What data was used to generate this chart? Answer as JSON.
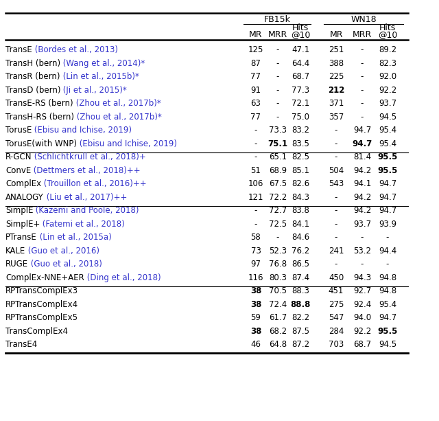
{
  "fb15k_header": "FB15k",
  "wn18_header": "WN18",
  "groups": [
    {
      "rows": [
        {
          "model": "TransE",
          "cite": " (Bordes et al., 2013)",
          "vals": [
            "125",
            "-",
            "47.1",
            "251",
            "-",
            "89.2"
          ],
          "bold": []
        },
        {
          "model": "TransH (bern)",
          "cite": " (Wang et al., 2014)*",
          "vals": [
            "87",
            "-",
            "64.4",
            "388",
            "-",
            "82.3"
          ],
          "bold": []
        },
        {
          "model": "TransR (bern)",
          "cite": " (Lin et al., 2015b)*",
          "vals": [
            "77",
            "-",
            "68.7",
            "225",
            "-",
            "92.0"
          ],
          "bold": []
        },
        {
          "model": "TransD (bern)",
          "cite": " (Ji et al., 2015)*",
          "vals": [
            "91",
            "-",
            "77.3",
            "212",
            "-",
            "92.2"
          ],
          "bold": [
            3
          ]
        },
        {
          "model": "TransE-RS (bern)",
          "cite": " (Zhou et al., 2017b)*",
          "vals": [
            "63",
            "-",
            "72.1",
            "371",
            "-",
            "93.7"
          ],
          "bold": []
        },
        {
          "model": "TransH-RS (bern)",
          "cite": " (Zhou et al., 2017b)*",
          "vals": [
            "77",
            "-",
            "75.0",
            "357",
            "-",
            "94.5"
          ],
          "bold": []
        },
        {
          "model": "TorusE",
          "cite": " (Ebisu and Ichise, 2019)",
          "vals": [
            "-",
            "73.3",
            "83.2",
            "-",
            "94.7",
            "95.4"
          ],
          "bold": []
        },
        {
          "model": "TorusE(with WNP)",
          "cite": " (Ebisu and Ichise, 2019)",
          "vals": [
            "-",
            "75.1",
            "83.5",
            "-",
            "94.7",
            "95.4"
          ],
          "bold": [
            1,
            4
          ]
        }
      ]
    },
    {
      "rows": [
        {
          "model": "R-GCN",
          "cite": " (Schlichtkrull et al., 2018)+",
          "vals": [
            "-",
            "65.1",
            "82.5",
            "-",
            "81.4",
            "95.5"
          ],
          "bold": [
            5
          ]
        },
        {
          "model": "ConvE",
          "cite": " (Dettmers et al., 2018)++",
          "vals": [
            "51",
            "68.9",
            "85.1",
            "504",
            "94.2",
            "95.5"
          ],
          "bold": [
            5
          ]
        },
        {
          "model": "ComplEx",
          "cite": " (Trouillon et al., 2016)++",
          "vals": [
            "106",
            "67.5",
            "82.6",
            "543",
            "94.1",
            "94.7"
          ],
          "bold": []
        },
        {
          "model": "ANALOGY",
          "cite": " (Liu et al., 2017)++",
          "vals": [
            "121",
            "72.2",
            "84.3",
            "-",
            "94.2",
            "94.7"
          ],
          "bold": []
        }
      ]
    },
    {
      "rows": [
        {
          "model": "SimplE",
          "cite": " (Kazemi and Poole, 2018)",
          "vals": [
            "-",
            "72.7",
            "83.8",
            "-",
            "94.2",
            "94.7"
          ],
          "bold": []
        },
        {
          "model": "SimplE+",
          "cite": " (Fatemi et al., 2018)",
          "vals": [
            "-",
            "72.5",
            "84.1",
            "-",
            "93.7",
            "93.9"
          ],
          "bold": []
        },
        {
          "model": "PTransE",
          "cite": " (Lin et al., 2015a)",
          "vals": [
            "58",
            "-",
            "84.6",
            "-",
            "-",
            "-"
          ],
          "bold": []
        },
        {
          "model": "KALE",
          "cite": " (Guo et al., 2016)",
          "vals": [
            "73",
            "52.3",
            "76.2",
            "241",
            "53.2",
            "94.4"
          ],
          "bold": []
        },
        {
          "model": "RUGE",
          "cite": " (Guo et al., 2018)",
          "vals": [
            "97",
            "76.8",
            "86.5",
            "-",
            "-",
            "-"
          ],
          "bold": []
        },
        {
          "model": "ComplEx-NNE+AER",
          "cite": " (Ding et al., 2018)",
          "vals": [
            "116",
            "80.3",
            "87.4",
            "450",
            "94.3",
            "94.8"
          ],
          "bold": []
        }
      ]
    },
    {
      "rows": [
        {
          "model": "RPTransComplEx3",
          "cite": "",
          "vals": [
            "38",
            "70.5",
            "88.3",
            "451",
            "92.7",
            "94.8"
          ],
          "bold": [
            0
          ]
        },
        {
          "model": "RPTransComplEx4",
          "cite": "",
          "vals": [
            "38",
            "72.4",
            "88.8",
            "275",
            "92.4",
            "95.4"
          ],
          "bold": [
            0,
            2
          ]
        },
        {
          "model": "RPTransComplEx5",
          "cite": "",
          "vals": [
            "59",
            "61.7",
            "82.2",
            "547",
            "94.0",
            "94.7"
          ],
          "bold": []
        },
        {
          "model": "TransComplEx4",
          "cite": "",
          "vals": [
            "38",
            "68.2",
            "87.5",
            "284",
            "92.2",
            "95.5"
          ],
          "bold": [
            0,
            5
          ]
        },
        {
          "model": "TransE4",
          "cite": "",
          "vals": [
            "46",
            "64.8",
            "87.2",
            "703",
            "68.7",
            "94.5"
          ],
          "bold": []
        }
      ]
    }
  ],
  "cite_color": "#3333cc",
  "bg_color": "#ffffff"
}
